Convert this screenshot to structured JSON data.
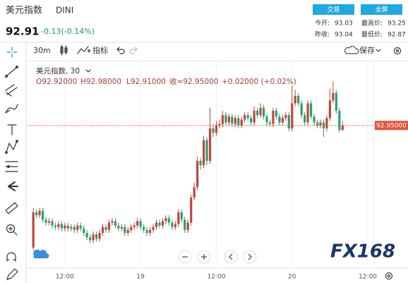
{
  "header": {
    "title": "美元指数",
    "symbol": "DINI",
    "price": "92.91",
    "change": "-0.13(-0.14%)",
    "buttons": [
      "交易",
      "全屏"
    ],
    "stats": [
      {
        "label": "今开:",
        "value": "93.03"
      },
      {
        "label": "最高价:",
        "value": "93.25"
      },
      {
        "label": "昨收:",
        "value": "93.04"
      },
      {
        "label": "最低价:",
        "value": "92.87"
      }
    ]
  },
  "toolbar": {
    "interval": "30m",
    "indicators": "指标",
    "save": "保存"
  },
  "legend": {
    "name": "美元指数, 30",
    "ohlc": [
      "O92.92000",
      "H92.98000",
      "L92.91000",
      "收=92.95000",
      "+0.02000 (+0.02%)"
    ]
  },
  "watermark": "FX168",
  "chart_data": {
    "type": "candlestick",
    "up_color": "#c0463a",
    "down_color": "#2e9e6f",
    "grid": true,
    "xlim": [
      -1.6,
      108
    ],
    "ylim": [
      91.99,
      93.38
    ],
    "xticks": [
      {
        "value": 10,
        "label": "12:00"
      },
      {
        "value": 34,
        "label": "19"
      },
      {
        "value": 58,
        "label": "12:00"
      },
      {
        "value": 82,
        "label": "20"
      },
      {
        "value": 106,
        "label": "12:00"
      }
    ],
    "price_line": {
      "value": 92.95,
      "label": "92.95000",
      "color": "#e5533d"
    },
    "open": [
      92.12,
      92.36,
      92.34,
      92.37,
      92.31,
      92.29,
      92.3,
      92.27,
      92.26,
      92.28,
      92.25,
      92.27,
      92.25,
      92.26,
      92.24,
      92.27,
      92.25,
      92.22,
      92.19,
      92.17,
      92.21,
      92.18,
      92.22,
      92.26,
      92.24,
      92.29,
      92.3,
      92.27,
      92.25,
      92.26,
      92.22,
      92.24,
      92.26,
      92.27,
      92.3,
      92.26,
      92.24,
      92.22,
      92.24,
      92.26,
      92.29,
      92.27,
      92.3,
      92.32,
      92.29,
      92.26,
      92.28,
      92.36,
      92.31,
      92.24,
      92.29,
      92.46,
      92.53,
      92.71,
      92.68,
      92.85,
      92.71,
      92.93,
      92.9,
      92.95,
      92.96,
      93.02,
      92.97,
      93.01,
      92.96,
      93.0,
      92.95,
      92.99,
      93.02,
      93.0,
      92.97,
      93.05,
      93.02,
      93.07,
      93.01,
      92.97,
      92.96,
      93.05,
      93.01,
      92.97,
      93.0,
      93.02,
      92.93,
      93.1,
      93.15,
      93.1,
      93.02,
      92.97,
      93.1,
      93.01,
      92.97,
      92.95,
      92.97,
      92.93,
      93.0,
      93.12,
      93.17,
      93.05,
      92.92
    ],
    "high": [
      92.39,
      92.38,
      92.39,
      92.39,
      92.33,
      92.32,
      92.32,
      92.29,
      92.3,
      92.3,
      92.29,
      92.29,
      92.28,
      92.28,
      92.29,
      92.29,
      92.27,
      92.24,
      92.21,
      92.23,
      92.23,
      92.24,
      92.28,
      92.28,
      92.31,
      92.32,
      92.32,
      92.29,
      92.28,
      92.28,
      92.26,
      92.28,
      92.29,
      92.32,
      92.32,
      92.28,
      92.26,
      92.26,
      92.28,
      92.31,
      92.31,
      92.32,
      92.34,
      92.34,
      92.31,
      92.3,
      92.38,
      92.38,
      92.33,
      92.31,
      92.48,
      92.56,
      92.74,
      92.73,
      92.88,
      92.87,
      93.07,
      92.96,
      92.98,
      92.99,
      93.05,
      93.04,
      93.03,
      93.03,
      93.02,
      93.02,
      93.01,
      93.04,
      93.04,
      93.02,
      93.08,
      93.07,
      93.1,
      93.09,
      93.03,
      92.99,
      93.07,
      93.07,
      93.03,
      93.02,
      93.04,
      93.04,
      93.22,
      93.19,
      93.17,
      93.12,
      93.04,
      93.12,
      93.12,
      93.03,
      92.99,
      92.99,
      92.99,
      93.02,
      93.2,
      93.25,
      93.19,
      93.07,
      92.98
    ],
    "low": [
      92.1,
      92.32,
      92.32,
      92.29,
      92.27,
      92.27,
      92.25,
      92.24,
      92.24,
      92.23,
      92.23,
      92.23,
      92.23,
      92.22,
      92.22,
      92.23,
      92.2,
      92.17,
      92.15,
      92.15,
      92.16,
      92.16,
      92.2,
      92.22,
      92.22,
      92.27,
      92.25,
      92.23,
      92.23,
      92.2,
      92.2,
      92.22,
      92.24,
      92.25,
      92.24,
      92.22,
      92.2,
      92.2,
      92.22,
      92.24,
      92.25,
      92.25,
      92.28,
      92.27,
      92.24,
      92.24,
      92.26,
      92.29,
      92.22,
      92.22,
      92.27,
      92.44,
      92.51,
      92.65,
      92.66,
      92.68,
      92.69,
      92.87,
      92.88,
      92.93,
      92.94,
      92.95,
      92.95,
      92.94,
      92.94,
      92.93,
      92.93,
      92.97,
      92.98,
      92.95,
      92.95,
      93.0,
      93.0,
      92.99,
      92.95,
      92.94,
      92.94,
      92.99,
      92.95,
      92.95,
      92.98,
      92.91,
      92.91,
      93.08,
      93.08,
      93.0,
      92.95,
      92.95,
      92.99,
      92.95,
      92.93,
      92.93,
      92.87,
      92.91,
      92.98,
      93.1,
      93.03,
      92.9,
      92.91
    ],
    "close": [
      92.36,
      92.34,
      92.37,
      92.31,
      92.29,
      92.3,
      92.27,
      92.26,
      92.28,
      92.25,
      92.27,
      92.25,
      92.26,
      92.24,
      92.27,
      92.25,
      92.22,
      92.19,
      92.17,
      92.21,
      92.18,
      92.22,
      92.26,
      92.24,
      92.29,
      92.3,
      92.27,
      92.25,
      92.26,
      92.22,
      92.24,
      92.26,
      92.27,
      92.3,
      92.26,
      92.24,
      92.22,
      92.24,
      92.26,
      92.29,
      92.27,
      92.3,
      92.32,
      92.29,
      92.26,
      92.28,
      92.36,
      92.31,
      92.24,
      92.29,
      92.46,
      92.53,
      92.71,
      92.68,
      92.85,
      92.71,
      92.93,
      92.9,
      92.95,
      92.96,
      93.02,
      92.97,
      93.01,
      92.96,
      93.0,
      92.95,
      92.99,
      93.02,
      93.0,
      92.97,
      93.05,
      93.02,
      93.07,
      93.01,
      92.97,
      92.96,
      93.05,
      93.01,
      92.97,
      93.0,
      93.02,
      92.93,
      93.1,
      93.15,
      93.1,
      93.02,
      92.97,
      93.1,
      93.01,
      92.97,
      92.95,
      92.97,
      92.93,
      93.0,
      93.12,
      93.17,
      93.05,
      92.92,
      92.95
    ]
  }
}
